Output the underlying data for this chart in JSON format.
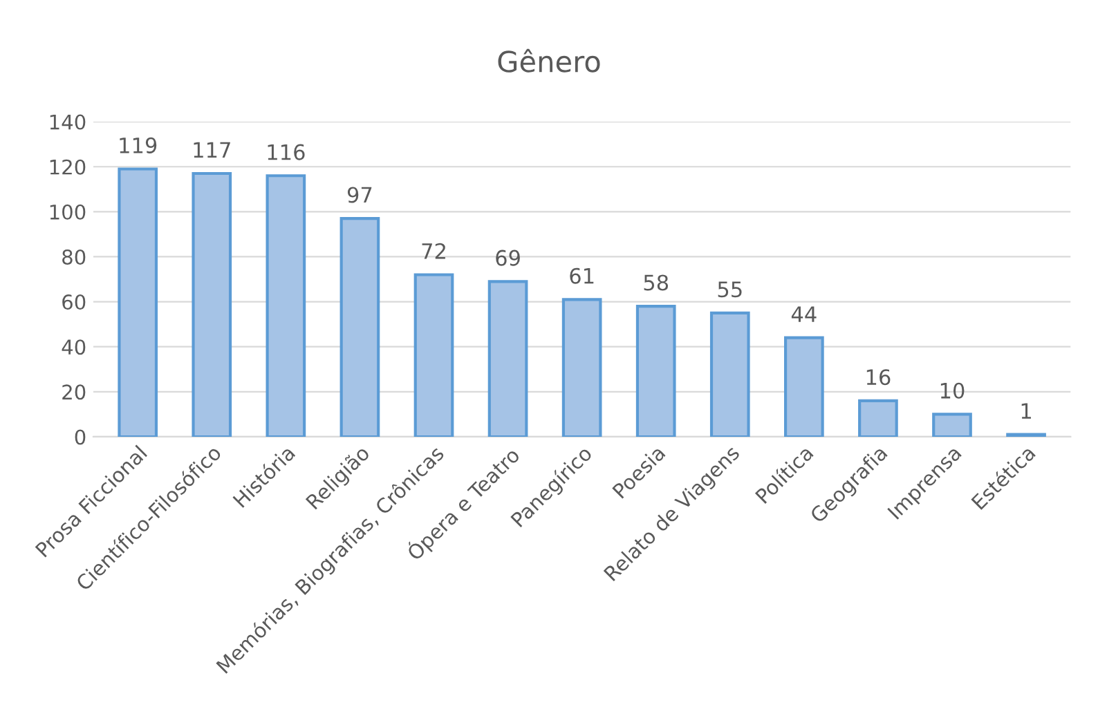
{
  "chart_data": {
    "type": "bar",
    "title": "Gênero",
    "categories": [
      "Prosa Ficcional",
      "Científico-Filosófico",
      "História",
      "Religião",
      "Memórias, Biografias, Crônicas",
      "Ópera e Teatro",
      "Panegírico",
      "Poesia",
      "Relato de Viagens",
      "Política",
      "Geografia",
      "Imprensa",
      "Estética"
    ],
    "values": [
      119,
      117,
      116,
      97,
      72,
      69,
      61,
      58,
      55,
      44,
      16,
      10,
      1
    ],
    "color": "#a5c3e6",
    "ylim": [
      0,
      140
    ],
    "yticks": [
      0,
      20,
      40,
      60,
      80,
      100,
      120,
      140
    ],
    "grid": "y",
    "data_labels": true
  }
}
